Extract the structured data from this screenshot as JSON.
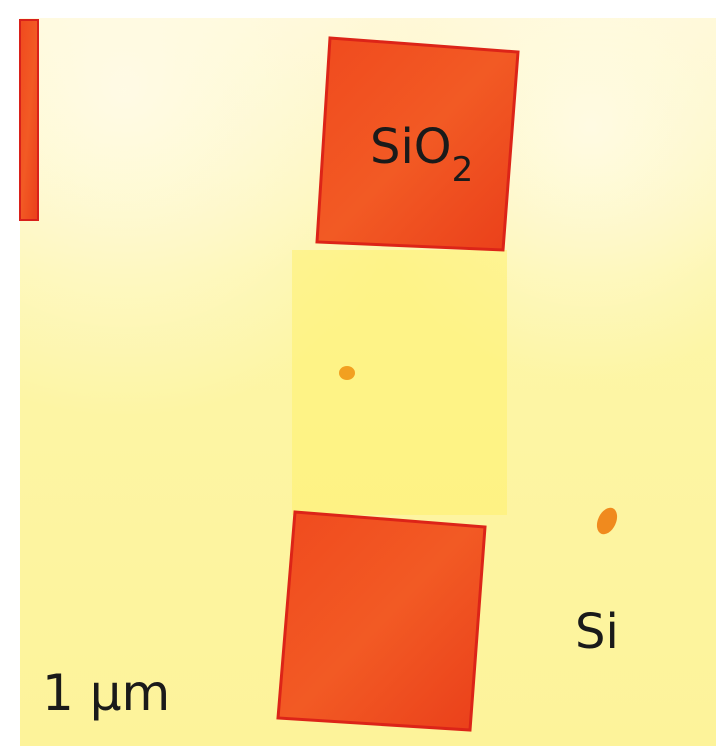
{
  "labels": {
    "oxide": "SiO",
    "oxide_subscript": "2",
    "substrate": "Si",
    "scale": "1 μm"
  }
}
